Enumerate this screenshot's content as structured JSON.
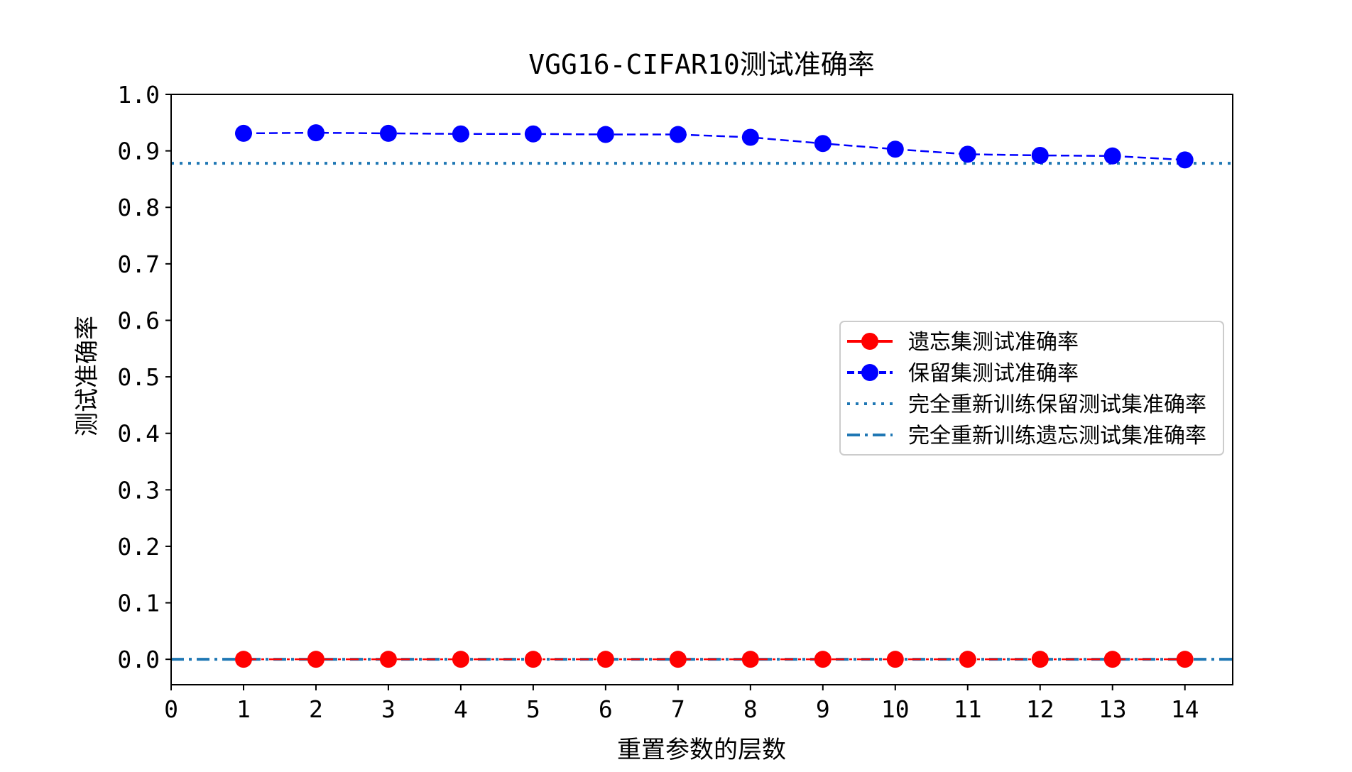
{
  "chart_data": {
    "type": "line",
    "title": "VGG16-CIFAR10测试准确率",
    "xlabel": "重置参数的层数",
    "ylabel": "测试准确率",
    "xlim": [
      0,
      14.66
    ],
    "ylim": [
      -0.045,
      1.0
    ],
    "xticks": [
      0,
      1,
      2,
      3,
      4,
      5,
      6,
      7,
      8,
      9,
      10,
      11,
      12,
      13,
      14
    ],
    "yticks": [
      0.0,
      0.1,
      0.2,
      0.3,
      0.4,
      0.5,
      0.6,
      0.7,
      0.8,
      0.9,
      1.0
    ],
    "ytick_labels": [
      "0.0",
      "0.1",
      "0.2",
      "0.3",
      "0.4",
      "0.5",
      "0.6",
      "0.7",
      "0.8",
      "0.9",
      "1.0"
    ],
    "grid": false,
    "legend_position": "center-right",
    "series": [
      {
        "name": "遗忘集测试准确率",
        "color": "#ff0000",
        "linestyle": "dashdot",
        "marker": "circle",
        "x": [
          1,
          2,
          3,
          4,
          5,
          6,
          7,
          8,
          9,
          10,
          11,
          12,
          13,
          14
        ],
        "values": [
          0.0,
          0.0,
          0.0,
          0.0,
          0.0,
          0.0,
          0.0,
          0.0,
          0.0,
          0.0,
          0.0,
          0.0,
          0.0,
          0.0
        ]
      },
      {
        "name": "保留集测试准确率",
        "color": "#0000ff",
        "linestyle": "dashed",
        "marker": "circle",
        "x": [
          1,
          2,
          3,
          4,
          5,
          6,
          7,
          8,
          9,
          10,
          11,
          12,
          13,
          14
        ],
        "values": [
          0.931,
          0.932,
          0.931,
          0.93,
          0.93,
          0.929,
          0.929,
          0.924,
          0.913,
          0.903,
          0.894,
          0.892,
          0.891,
          0.884
        ]
      }
    ],
    "reference_lines": [
      {
        "name": "完全重新训练保留测试集准确率",
        "color": "#1f77b4",
        "linestyle": "dotted",
        "y": 0.878
      },
      {
        "name": "完全重新训练遗忘测试集准确率",
        "color": "#1f77b4",
        "linestyle": "dashdot",
        "y": 0.0
      }
    ]
  }
}
